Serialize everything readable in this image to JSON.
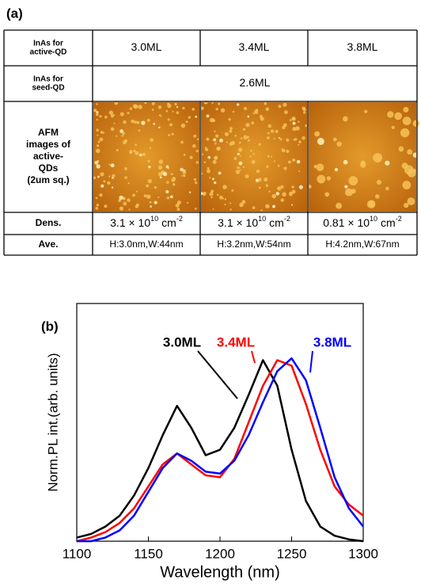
{
  "panel_a": {
    "label": "(a)",
    "table": {
      "rows": [
        {
          "header": [
            "InAs for",
            "active-QD"
          ],
          "cells": [
            "3.0ML",
            "3.4ML",
            "3.8ML"
          ]
        },
        {
          "header": [
            "InAs for",
            "seed-QD"
          ],
          "cells": [
            "2.6ML"
          ]
        },
        {
          "header": [
            "AFM",
            "images of",
            "active-",
            "QDs",
            "(2um sq.)"
          ],
          "cells": []
        },
        {
          "header": [
            "Dens."
          ],
          "cells": [
            {
              "mantissa": "3.1 × 10",
              "exp": "10",
              "unit": "cm",
              "unit_exp": "-2"
            },
            {
              "mantissa": "3.1 × 10",
              "exp": "10",
              "unit": "cm",
              "unit_exp": "-2"
            },
            {
              "mantissa": "0.81 × 10",
              "exp": "10",
              "unit": "cm",
              "unit_exp": "-2"
            }
          ]
        },
        {
          "header": [
            "Ave."
          ],
          "cells": [
            "H:3.0nm,W:44nm",
            "H:3.2nm,W:54nm",
            "H:4.2nm,W:67nm"
          ]
        }
      ]
    }
  },
  "chart_data": {
    "type": "line",
    "label": "(b)",
    "x_label": "Wavelength (nm)",
    "y_label": "Norm.PL int.(arb. units)",
    "x": [
      1100,
      1110,
      1120,
      1130,
      1140,
      1150,
      1160,
      1170,
      1180,
      1190,
      1200,
      1210,
      1220,
      1230,
      1240,
      1250,
      1260,
      1270,
      1280,
      1290,
      1300
    ],
    "xlim": [
      1100,
      1300
    ],
    "xticks": [
      1100,
      1150,
      1200,
      1250,
      1300
    ],
    "ylim": [
      0,
      1.3
    ],
    "series": [
      {
        "name": "3.0ML",
        "color": "#000000",
        "values": [
          0.02,
          0.04,
          0.08,
          0.14,
          0.25,
          0.4,
          0.58,
          0.74,
          0.62,
          0.47,
          0.5,
          0.62,
          0.8,
          0.99,
          0.85,
          0.5,
          0.22,
          0.08,
          0.03,
          0.01,
          0.0
        ]
      },
      {
        "name": "3.4ML",
        "color": "#ff0000",
        "values": [
          0.0,
          0.02,
          0.05,
          0.1,
          0.18,
          0.3,
          0.42,
          0.48,
          0.42,
          0.36,
          0.35,
          0.45,
          0.65,
          0.85,
          0.99,
          0.96,
          0.75,
          0.5,
          0.3,
          0.2,
          0.14
        ]
      },
      {
        "name": "3.8ML",
        "color": "#0000ff",
        "values": [
          0.0,
          0.0,
          0.02,
          0.06,
          0.14,
          0.27,
          0.4,
          0.48,
          0.44,
          0.38,
          0.37,
          0.44,
          0.58,
          0.76,
          0.93,
          1.0,
          0.88,
          0.62,
          0.35,
          0.18,
          0.08
        ]
      }
    ]
  }
}
